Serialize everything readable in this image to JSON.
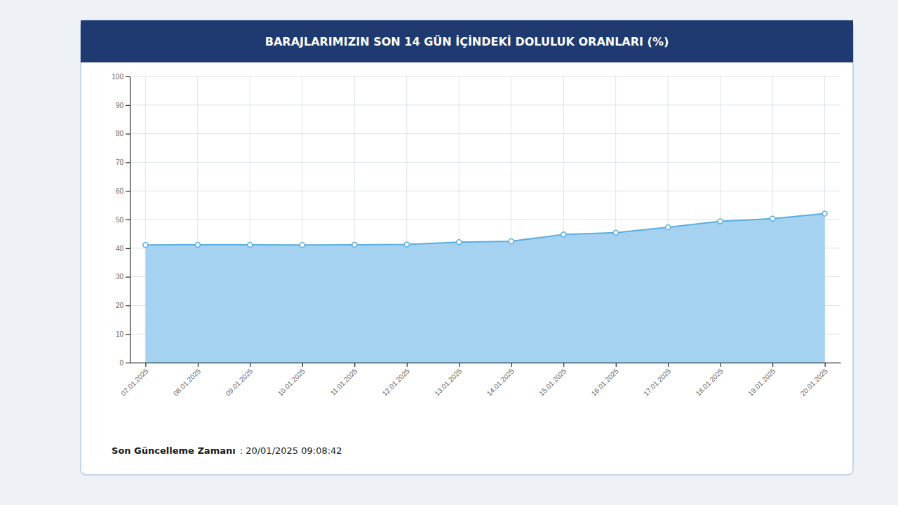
{
  "chart_data": {
    "type": "area",
    "title": "BARAJLARIMIZIN SON 14 GÜN İÇİNDEKİ DOLULUK ORANLARI (%)",
    "annotations": [
      "Son Güncelleme Zamanı",
      ": 20/01/2025 09:08:42"
    ],
    "categories": [
      "07.01.2025",
      "08.01.2025",
      "09.01.2025",
      "10.01.2025",
      "11.01.2025",
      "12.01.2025",
      "13.01.2025",
      "14.01.2025",
      "15.01.2025",
      "16.01.2025",
      "17.01.2025",
      "18.01.2025",
      "19.01.2025",
      "20.01.2025"
    ],
    "values": [
      41.1,
      41.2,
      41.2,
      41.1,
      41.2,
      41.3,
      42.1,
      42.4,
      44.8,
      45.4,
      47.3,
      49.4,
      50.3,
      52.1
    ],
    "color": "#5baee3",
    "marker": "circle",
    "ylim": [
      0,
      100
    ],
    "yticks": [
      0,
      10,
      20,
      30,
      40,
      50,
      60,
      70,
      80,
      90,
      100
    ],
    "grid": true
  }
}
